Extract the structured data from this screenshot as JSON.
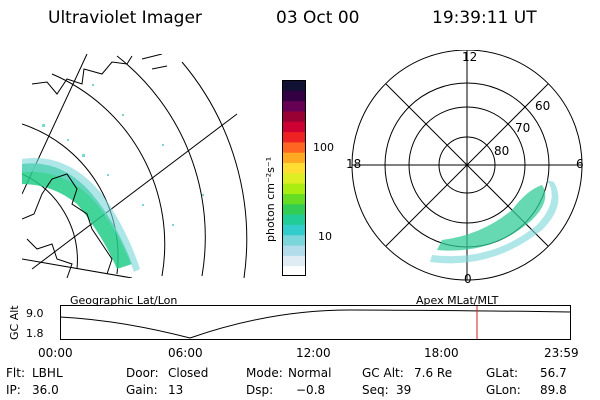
{
  "header": {
    "title": "Ultraviolet Imager",
    "date": "03 Oct 00",
    "time": "19:39:11 UT"
  },
  "colorbar": {
    "unit_label": "photon cm⁻²s⁻¹",
    "ticks": [
      "100",
      "10"
    ],
    "colors": [
      "#ffffff",
      "#e0ecf4",
      "#b3dcea",
      "#7ad6d8",
      "#33cccc",
      "#22cc99",
      "#33cc55",
      "#66dd22",
      "#aaee11",
      "#ddee22",
      "#ffdd33",
      "#ffaa22",
      "#ff6622",
      "#ee2222",
      "#cc0033",
      "#990033",
      "#660055",
      "#330044",
      "#111133"
    ]
  },
  "polar_plot": {
    "labels": [
      "12",
      "18",
      "6",
      "0",
      "60",
      "70",
      "80"
    ]
  },
  "panels": {
    "left_label": "Geographic Lat/Lon",
    "right_label": "Apex MLat/MLT"
  },
  "timeline": {
    "ylabel": "GC Alt",
    "yticks": [
      "9.0",
      "1.8"
    ],
    "xticks": [
      "00:00",
      "06:00",
      "12:00",
      "18:00",
      "23:59"
    ],
    "marker_time": "19:39"
  },
  "status": {
    "row1": [
      {
        "label": "Flt:",
        "value": "LBHL"
      },
      {
        "label": "Door:",
        "value": "Closed"
      },
      {
        "label": "Mode:",
        "value": "Normal"
      },
      {
        "label": "GC Alt:",
        "value": "7.6 Re"
      },
      {
        "label": "GLat:",
        "value": "56.7"
      }
    ],
    "row2": [
      {
        "label": "IP:",
        "value": "36.0"
      },
      {
        "label": "Gain:",
        "value": "13"
      },
      {
        "label": "Dsp:",
        "value": "−0.8"
      },
      {
        "label": "Seq:",
        "value": "39"
      },
      {
        "label": "GLon:",
        "value": "89.8"
      }
    ]
  }
}
